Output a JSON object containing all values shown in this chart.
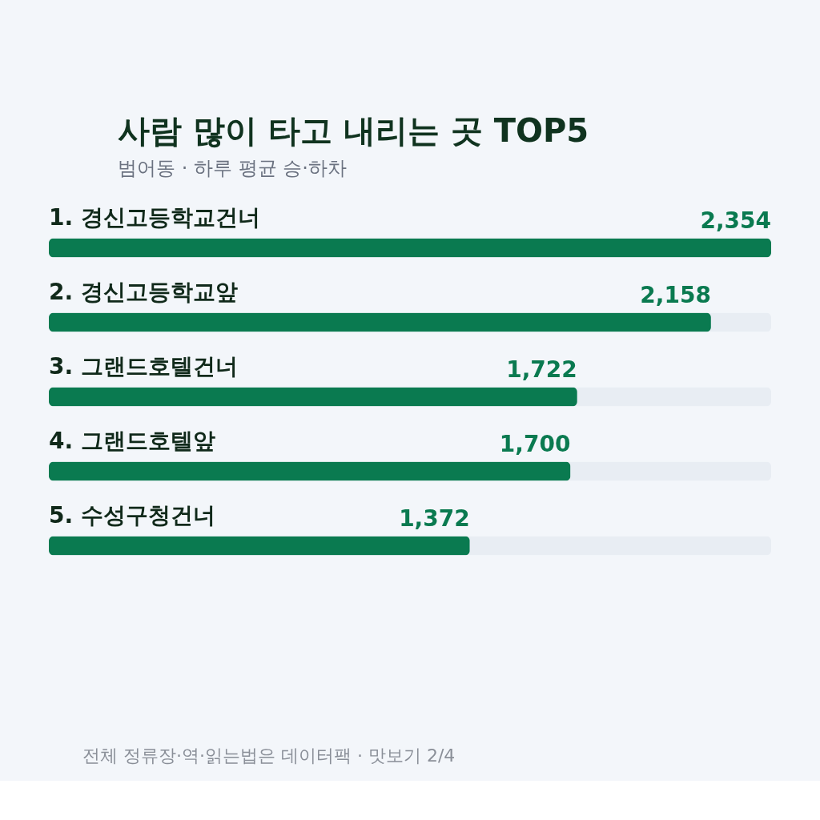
{
  "chart_data": {
    "type": "bar",
    "orientation": "horizontal",
    "title": "사람 많이 타고 내리는 곳 TOP5",
    "subtitle": "범어동 · 하루 평균 승·하차",
    "categories": [
      "1. 경신고등학교건너",
      "2. 경신고등학교앞",
      "3. 그랜드호텔건너",
      "4. 그랜드호텔앞",
      "5. 수성구청건너"
    ],
    "values": [
      2354,
      2158,
      1722,
      1700,
      1372
    ],
    "color": "#0a7a50",
    "value_labels": [
      "2,354",
      "2,158",
      "1,722",
      "1,700",
      "1,372"
    ],
    "annotations": [
      "전체 정류장·역·읽는법은 데이터팩 · 맛보기 2/4"
    ]
  }
}
